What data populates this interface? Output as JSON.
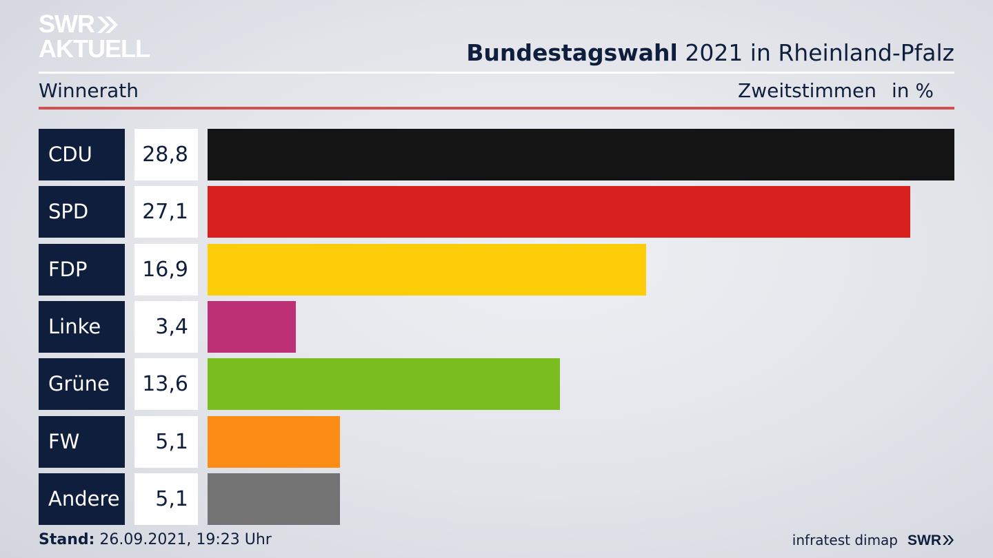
{
  "logo": {
    "line1": "SWR",
    "line2": "AKTUELL"
  },
  "header": {
    "title_bold": "Bundestagswahl",
    "title_rest": " 2021 in Rheinland-Pfalz",
    "location": "Winnerath",
    "vote_type": "Zweitstimmen",
    "unit": "in %"
  },
  "chart_data": {
    "type": "bar",
    "orientation": "horizontal",
    "title": "Bundestagswahl 2021 in Rheinland-Pfalz",
    "subtitle": "Winnerath",
    "xlabel": "Zweitstimmen in %",
    "categories": [
      "CDU",
      "SPD",
      "FDP",
      "Linke",
      "Grüne",
      "FW",
      "Andere"
    ],
    "values": [
      28.8,
      27.1,
      16.9,
      3.4,
      13.6,
      5.1,
      5.1
    ],
    "value_labels": [
      "28,8",
      "27,1",
      "16,9",
      "3,4",
      "13,6",
      "5,1",
      "5,1"
    ],
    "colors": [
      "#141414",
      "#d8201e",
      "#fdcd0a",
      "#bd3075",
      "#79bd1f",
      "#fd8c17",
      "#737373"
    ],
    "xlim": [
      0,
      28.8
    ],
    "grid": false
  },
  "footer": {
    "stand_label": "Stand:",
    "stand_value": " 26.09.2021, 19:23 Uhr",
    "source": "infratest dimap",
    "brand": "SWR"
  }
}
